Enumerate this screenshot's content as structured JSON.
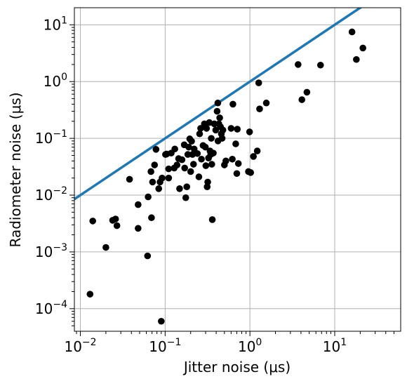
{
  "chart_data": {
    "type": "scatter",
    "xlabel": "Jitter noise (μs)",
    "ylabel": "Radiometer noise (μs)",
    "xscale": "log",
    "yscale": "log",
    "xlim": [
      0.0085,
      60
    ],
    "ylim": [
      4e-05,
      20
    ],
    "grid": true,
    "x_ticks": [
      {
        "value": 0.01,
        "base": "10",
        "exp": "−2"
      },
      {
        "value": 0.1,
        "base": "10",
        "exp": "−1"
      },
      {
        "value": 1,
        "base": "10",
        "exp": "0"
      },
      {
        "value": 10,
        "base": "10",
        "exp": "1"
      }
    ],
    "y_ticks": [
      {
        "value": 0.0001,
        "base": "10",
        "exp": "−4"
      },
      {
        "value": 0.001,
        "base": "10",
        "exp": "−3"
      },
      {
        "value": 0.01,
        "base": "10",
        "exp": "−2"
      },
      {
        "value": 0.1,
        "base": "10",
        "exp": "−1"
      },
      {
        "value": 1,
        "base": "10",
        "exp": "0"
      },
      {
        "value": 10,
        "base": "10",
        "exp": "1"
      }
    ],
    "reference_line": {
      "color": "#1f77b4",
      "points": [
        [
          0.0085,
          0.0085
        ],
        [
          21,
          21
        ]
      ]
    },
    "marker_color": "#000000",
    "points": [
      [
        0.013,
        0.00018
      ],
      [
        0.014,
        0.0035
      ],
      [
        0.02,
        0.0012
      ],
      [
        0.024,
        0.0036
      ],
      [
        0.026,
        0.0038
      ],
      [
        0.027,
        0.0029
      ],
      [
        0.038,
        0.019
      ],
      [
        0.048,
        0.0068
      ],
      [
        0.048,
        0.0026
      ],
      [
        0.062,
        0.00085
      ],
      [
        0.063,
        0.0093
      ],
      [
        0.068,
        0.026
      ],
      [
        0.069,
        0.004
      ],
      [
        0.071,
        0.017
      ],
      [
        0.075,
        0.034
      ],
      [
        0.078,
        0.064
      ],
      [
        0.084,
        0.013
      ],
      [
        0.087,
        0.017
      ],
      [
        0.09,
        6e-05
      ],
      [
        0.092,
        0.02
      ],
      [
        0.101,
        0.052
      ],
      [
        0.104,
        0.053
      ],
      [
        0.11,
        0.02
      ],
      [
        0.11,
        0.029
      ],
      [
        0.118,
        0.055
      ],
      [
        0.128,
        0.03
      ],
      [
        0.13,
        0.065
      ],
      [
        0.138,
        0.034
      ],
      [
        0.144,
        0.044
      ],
      [
        0.148,
        0.013
      ],
      [
        0.158,
        0.042
      ],
      [
        0.168,
        0.077
      ],
      [
        0.17,
        0.03
      ],
      [
        0.175,
        0.009
      ],
      [
        0.18,
        0.014
      ],
      [
        0.185,
        0.052
      ],
      [
        0.19,
        0.07
      ],
      [
        0.195,
        0.098
      ],
      [
        0.2,
        0.026
      ],
      [
        0.205,
        0.089
      ],
      [
        0.21,
        0.052
      ],
      [
        0.216,
        0.035
      ],
      [
        0.22,
        0.065
      ],
      [
        0.24,
        0.054
      ],
      [
        0.25,
        0.021
      ],
      [
        0.255,
        0.12
      ],
      [
        0.262,
        0.15
      ],
      [
        0.268,
        0.043
      ],
      [
        0.28,
        0.075
      ],
      [
        0.29,
        0.18
      ],
      [
        0.298,
        0.07
      ],
      [
        0.302,
        0.033
      ],
      [
        0.308,
        0.15
      ],
      [
        0.313,
        0.014
      ],
      [
        0.318,
        0.017
      ],
      [
        0.325,
        0.045
      ],
      [
        0.332,
        0.19
      ],
      [
        0.338,
        0.06
      ],
      [
        0.345,
        0.052
      ],
      [
        0.35,
        0.1
      ],
      [
        0.355,
        0.035
      ],
      [
        0.36,
        0.0037
      ],
      [
        0.37,
        0.055
      ],
      [
        0.38,
        0.18
      ],
      [
        0.395,
        0.14
      ],
      [
        0.41,
        0.3
      ],
      [
        0.418,
        0.42
      ],
      [
        0.42,
        0.09
      ],
      [
        0.43,
        0.18
      ],
      [
        0.44,
        0.23
      ],
      [
        0.45,
        0.16
      ],
      [
        0.46,
        0.12
      ],
      [
        0.47,
        0.1
      ],
      [
        0.48,
        0.14
      ],
      [
        0.5,
        0.034
      ],
      [
        0.52,
        0.04
      ],
      [
        0.6,
        0.15
      ],
      [
        0.62,
        0.043
      ],
      [
        0.63,
        0.4
      ],
      [
        0.68,
        0.08
      ],
      [
        0.7,
        0.024
      ],
      [
        0.71,
        0.145
      ],
      [
        0.73,
        0.036
      ],
      [
        0.96,
        0.026
      ],
      [
        0.99,
        0.13
      ],
      [
        1.02,
        0.025
      ],
      [
        1.1,
        0.048
      ],
      [
        1.22,
        0.06
      ],
      [
        1.27,
        0.95
      ],
      [
        1.3,
        0.33
      ],
      [
        1.56,
        0.42
      ],
      [
        3.7,
        2.0
      ],
      [
        4.1,
        0.48
      ],
      [
        4.7,
        0.65
      ],
      [
        6.8,
        1.95
      ],
      [
        16.0,
        7.5
      ],
      [
        18.0,
        2.45
      ],
      [
        21.5,
        3.9
      ]
    ]
  }
}
